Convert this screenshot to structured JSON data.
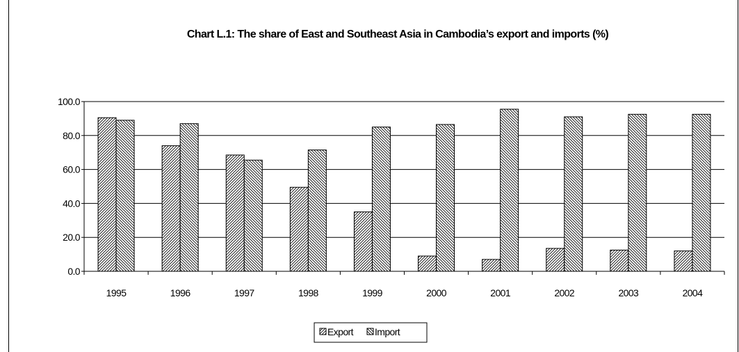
{
  "chart_data": {
    "type": "bar",
    "title": "Chart L.1: The share of East and Southeast Asia in Cambodia’s export and imports (%)",
    "xlabel": "",
    "ylabel": "",
    "categories": [
      "1995",
      "1996",
      "1997",
      "1998",
      "1999",
      "2000",
      "2001",
      "2002",
      "2003",
      "2004"
    ],
    "series": [
      {
        "name": "Export",
        "values": [
          90.5,
          74.0,
          68.5,
          49.5,
          35.0,
          9.0,
          7.0,
          13.5,
          12.5,
          12.0
        ]
      },
      {
        "name": "Import",
        "values": [
          89.0,
          87.0,
          65.5,
          71.5,
          85.0,
          86.5,
          95.5,
          91.0,
          92.5,
          92.5
        ]
      }
    ],
    "ylim": [
      0,
      100
    ],
    "yticks": [
      "0.0",
      "20.0",
      "40.0",
      "60.0",
      "80.0",
      "100.0"
    ],
    "grid": true,
    "legend_position": "bottom-center",
    "colors": {
      "bar_fill": "#ffffff",
      "hatch": "#000000",
      "grid": "#000000"
    }
  }
}
